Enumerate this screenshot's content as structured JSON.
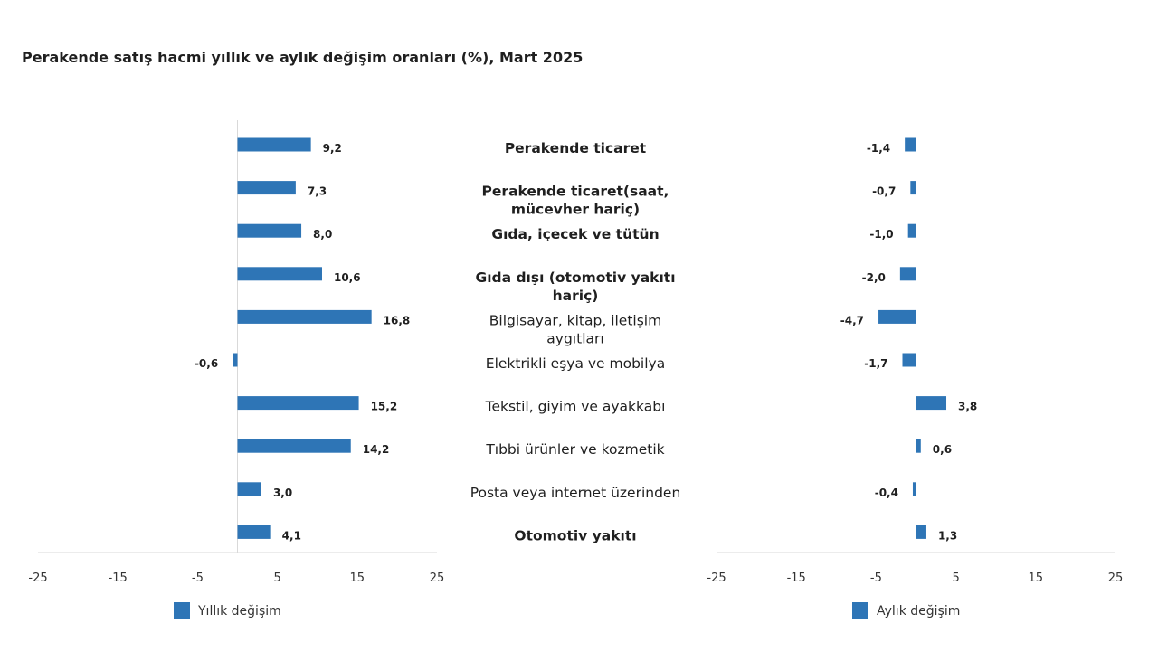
{
  "chart_data": {
    "type": "bar",
    "orientation": "horizontal",
    "title": "Perakende satış hacmi yıllık ve aylık değişim oranları (%), Mart 2025",
    "categories": [
      [
        "Perakende ticaret"
      ],
      [
        "Perakende ticaret(saat,",
        "mücevher hariç)"
      ],
      [
        "Gıda, içecek ve tütün"
      ],
      [
        "Gıda dışı (otomotiv yakıtı",
        "hariç)"
      ],
      [
        "Bilgisayar, kitap, iletişim",
        "aygıtları"
      ],
      [
        "Elektrikli eşya ve mobilya"
      ],
      [
        "Tekstil, giyim ve ayakkabı"
      ],
      [
        "Tıbbi ürünler ve kozmetik"
      ],
      [
        "Posta veya internet üzerinden"
      ],
      [
        "Otomotiv yakıtı"
      ]
    ],
    "category_bold": [
      true,
      true,
      true,
      true,
      false,
      false,
      false,
      false,
      false,
      true
    ],
    "series": [
      {
        "name": "Yıllık değişim",
        "values": [
          9.2,
          7.3,
          8.0,
          10.6,
          16.8,
          -0.6,
          15.2,
          14.2,
          3.0,
          4.1
        ],
        "labels": [
          "9,2",
          "7,3",
          "8,0",
          "10,6",
          "16,8",
          "-0,6",
          "15,2",
          "14,2",
          "3,0",
          "4,1"
        ]
      },
      {
        "name": "Aylık değişim",
        "values": [
          -1.4,
          -0.7,
          -1.0,
          -2.0,
          -4.7,
          -1.7,
          3.8,
          0.6,
          -0.4,
          1.3
        ],
        "labels": [
          "-1,4",
          "-0,7",
          "-1,0",
          "-2,0",
          "-4,7",
          "-1,7",
          "3,8",
          "0,6",
          "-0,4",
          "1,3"
        ]
      }
    ],
    "xlim": [
      -25,
      25
    ],
    "xticks": [
      -25,
      -15,
      -5,
      5,
      15,
      25
    ],
    "color": "#2e75b6",
    "legend": "bottom"
  }
}
